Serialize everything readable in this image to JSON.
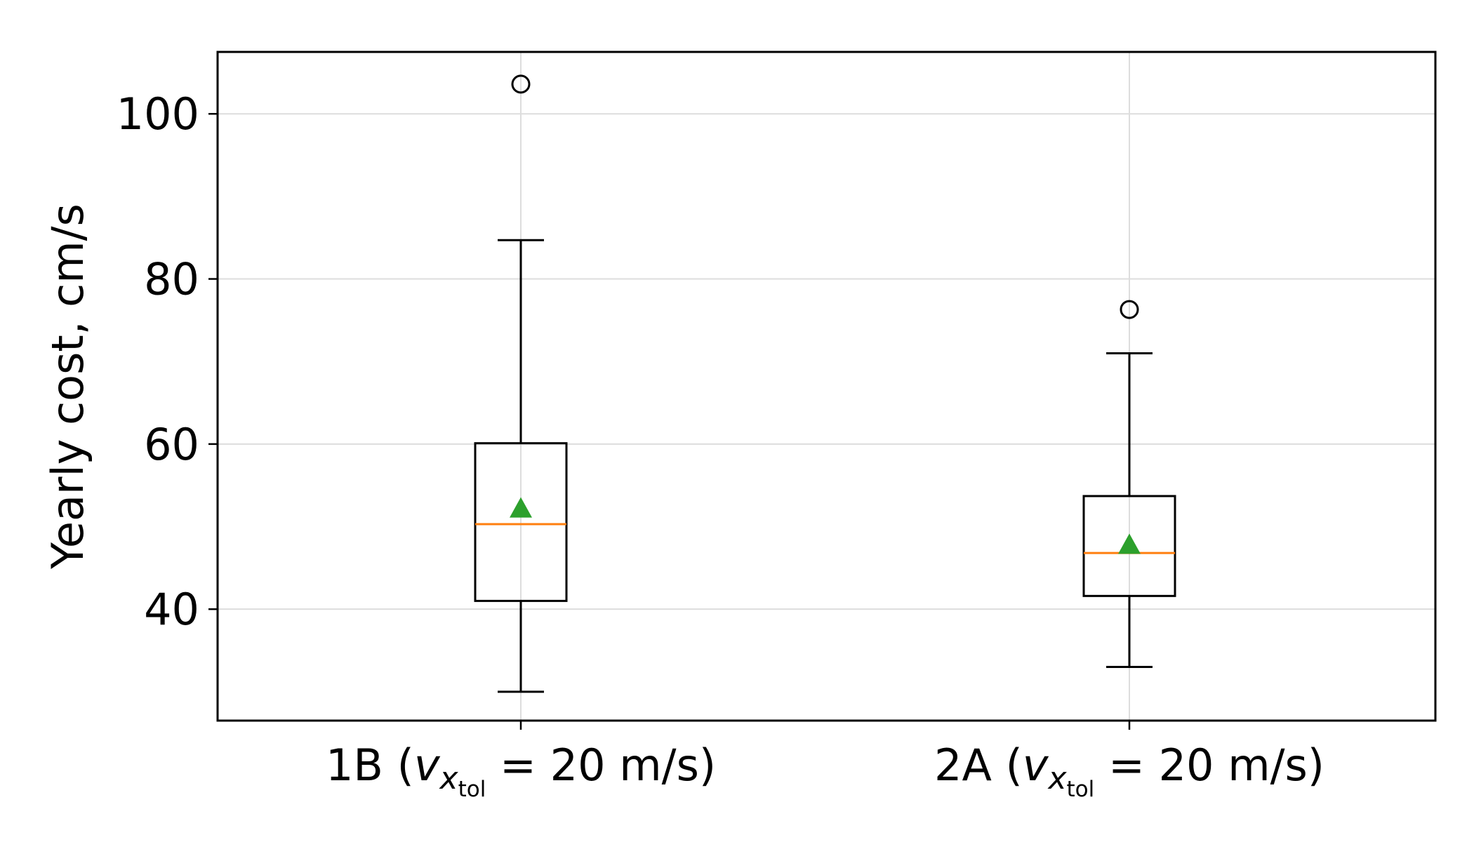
{
  "chart_data": {
    "type": "boxplot",
    "title": "",
    "xlabel": "",
    "ylabel": "Yearly cost, cm/s",
    "ylim": [
      26.5,
      107.5
    ],
    "yticks": [
      40,
      60,
      80,
      100
    ],
    "ytick_labels": [
      "40",
      "60",
      "80",
      "100"
    ],
    "grid": true,
    "categories": [
      {
        "prefix": "1B (",
        "var": "v",
        "sub": "x",
        "subsub": "tol",
        "suffix": " = 20 m/s)"
      },
      {
        "prefix": "2A (",
        "var": "v",
        "sub": "x",
        "subsub": "tol",
        "suffix": " = 20 m/s)"
      }
    ],
    "boxes": [
      {
        "name": "1B",
        "whisker_low": 30.0,
        "q1": 41.0,
        "median": 50.3,
        "mean": 52.2,
        "q3": 60.1,
        "whisker_high": 84.7,
        "outliers": [
          103.6
        ]
      },
      {
        "name": "2A",
        "whisker_low": 33.0,
        "q1": 41.6,
        "median": 46.8,
        "mean": 47.8,
        "q3": 53.7,
        "whisker_high": 71.0,
        "outliers": [
          76.3
        ]
      }
    ],
    "colors": {
      "box": "#000000",
      "median": "#ff7f0e",
      "mean": "#2ca02c",
      "grid": "#dddddd"
    }
  }
}
